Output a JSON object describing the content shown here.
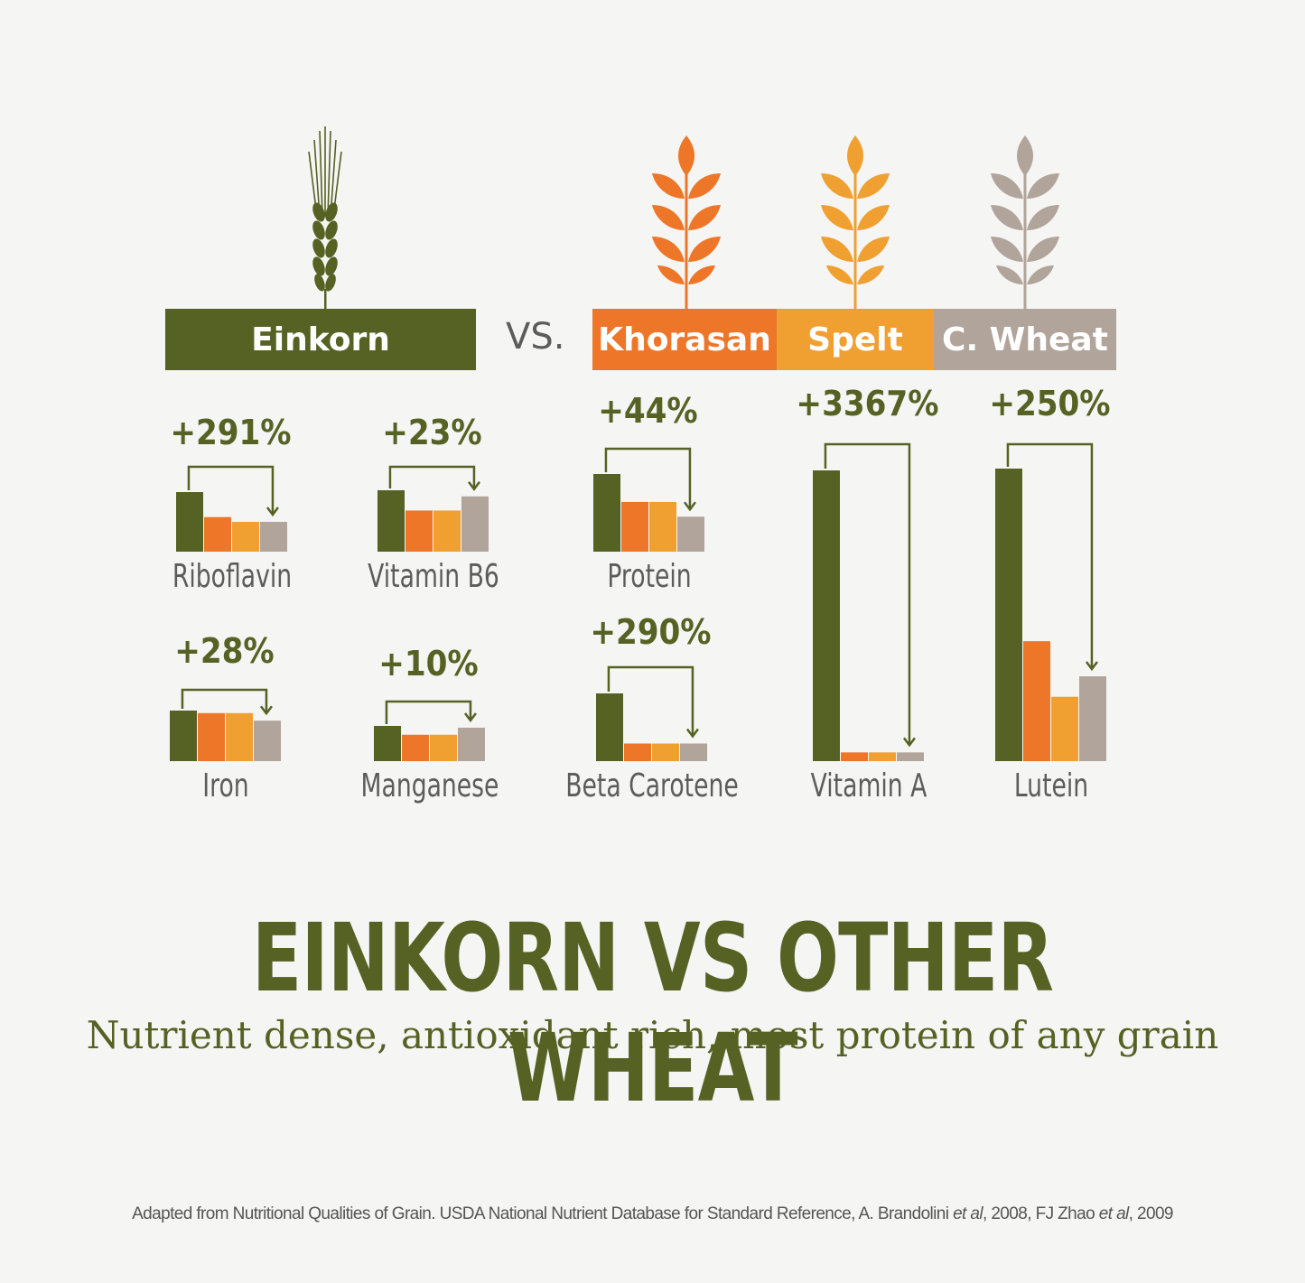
{
  "colors": {
    "einkorn": "#566124",
    "khorasan": "#ee7628",
    "spelt": "#f0a031",
    "c_wheat": "#b1a49a",
    "text_dark": "#566124",
    "label_gray": "#5c5c5c",
    "arrow_line": "#566124"
  },
  "icons": [
    "einkorn-wheat-icon",
    "khorasan-wheat-icon",
    "spelt-wheat-icon",
    "c-wheat-wheat-icon"
  ],
  "header": {
    "einkorn_label": "Einkorn",
    "vs_label": "VS.",
    "khorasan_label": "Khorasan",
    "spelt_label": "Spelt",
    "c_wheat_label": "C. Wheat"
  },
  "chart_data": {
    "type": "bar",
    "series_names": [
      "Einkorn",
      "Khorasan",
      "Spelt",
      "C. Wheat"
    ],
    "nutrients": [
      {
        "name": "Riboflavin",
        "increase_label": "+291%",
        "values": [
          1.0,
          0.58,
          0.5,
          0.5
        ]
      },
      {
        "name": "Vitamin B6",
        "increase_label": "+23%",
        "values": [
          1.0,
          0.67,
          0.67,
          0.9
        ]
      },
      {
        "name": "Protein",
        "increase_label": "+44%",
        "values": [
          1.0,
          0.64,
          0.64,
          0.45
        ]
      },
      {
        "name": "Iron",
        "increase_label": "+28%",
        "values": [
          1.0,
          0.95,
          0.95,
          0.8
        ]
      },
      {
        "name": "Manganese",
        "increase_label": "+10%",
        "values": [
          1.0,
          0.75,
          0.75,
          0.95
        ]
      },
      {
        "name": "Beta Carotene",
        "increase_label": "+290%",
        "values": [
          1.0,
          0.26,
          0.26,
          0.26
        ]
      },
      {
        "name": "Vitamin A",
        "increase_label": "+3367%",
        "values": [
          1.0,
          0.03,
          0.03,
          0.03
        ]
      },
      {
        "name": "Lutein",
        "increase_label": "+250%",
        "values": [
          1.0,
          0.41,
          0.22,
          0.29
        ]
      }
    ]
  },
  "title": "EINKORN VS OTHER WHEAT",
  "subtitle": "Nutrient dense, antioxidant rich, most protein of any grain",
  "source": {
    "part1": "Adapted from Nutritional Qualities of Grain. USDA National Nutrient Database for Standard Reference, A. Brandolini ",
    "etal1": "et al",
    "part2": ", 2008, FJ Zhao ",
    "etal2": "et al",
    "part3": ", 2009"
  }
}
